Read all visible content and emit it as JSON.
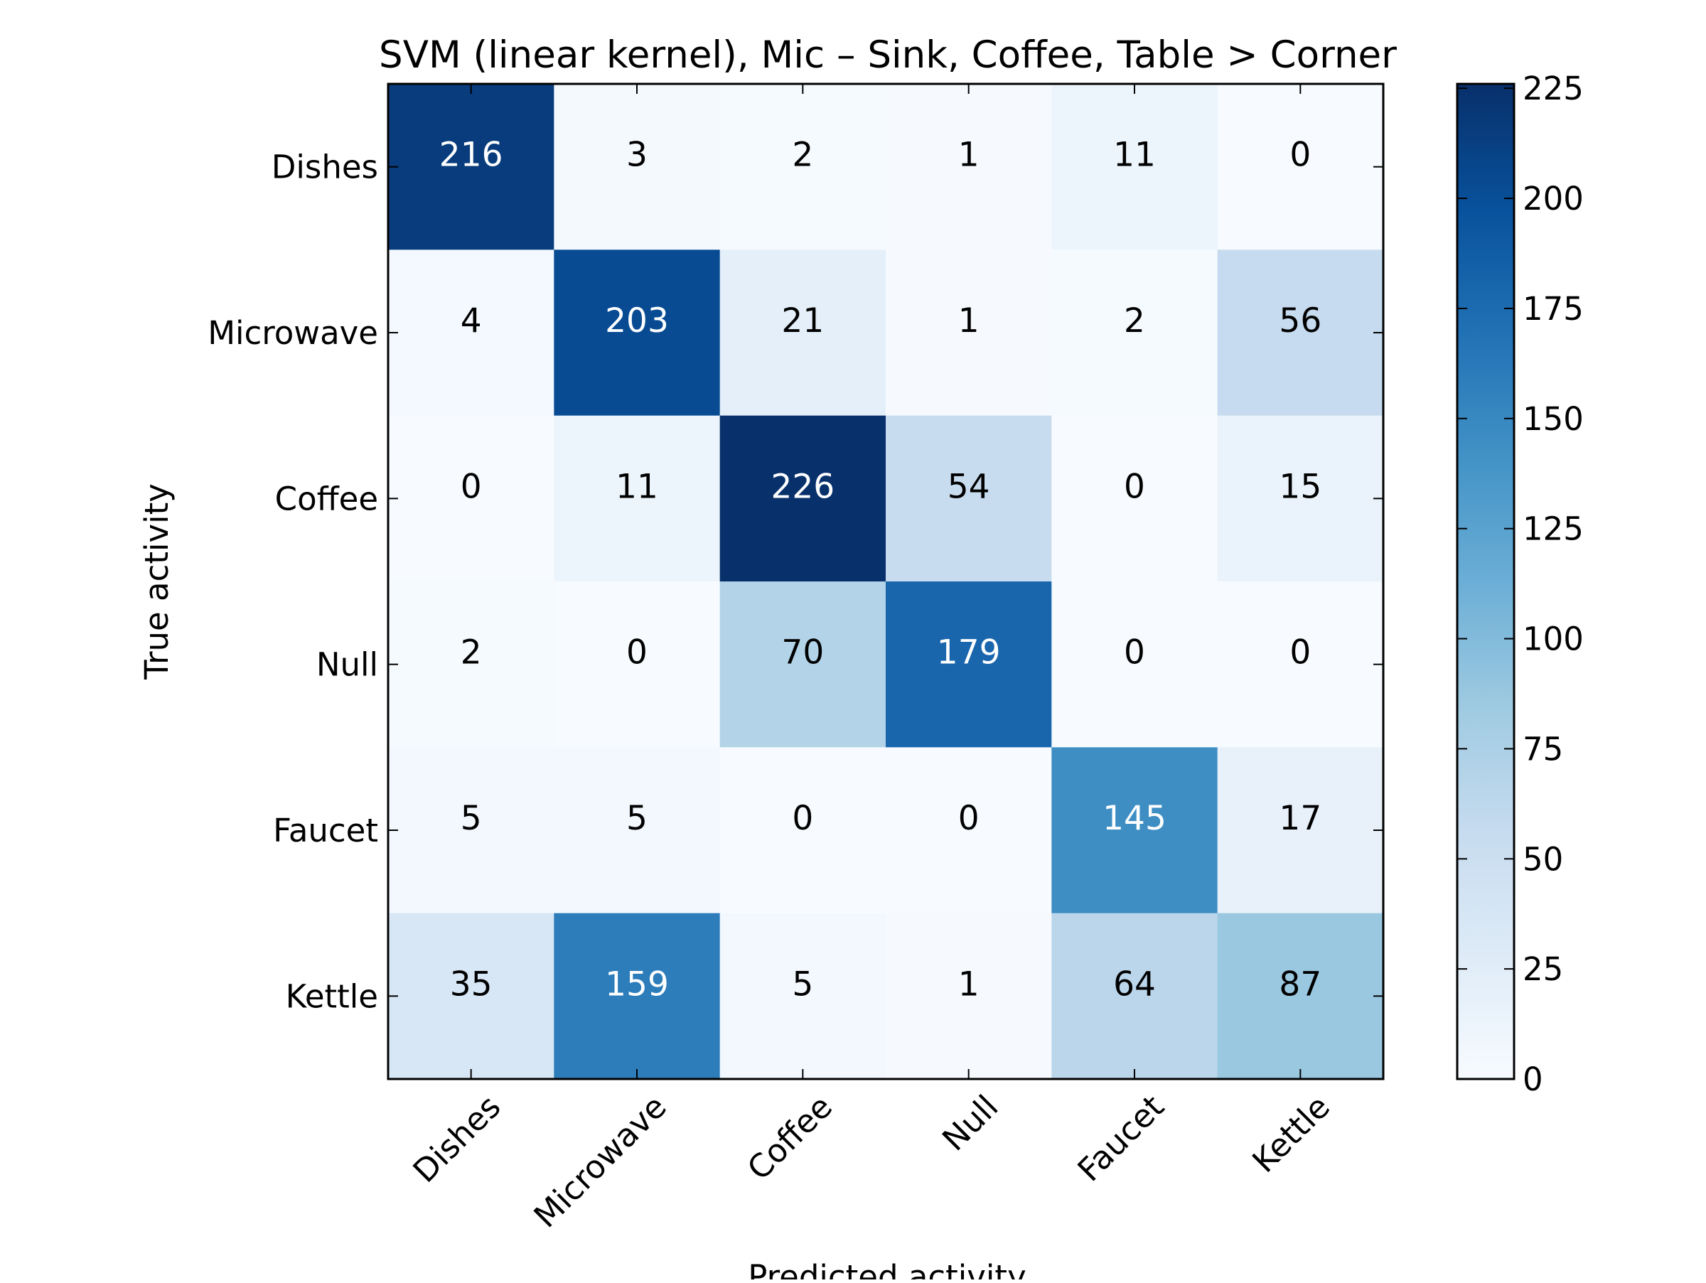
{
  "chart_data": {
    "type": "heatmap",
    "title": "SVM (linear kernel), Mic – Sink, Coffee, Table > Corner",
    "xlabel": "Predicted activity",
    "ylabel": "True activity",
    "x_categories": [
      "Dishes",
      "Microwave",
      "Coffee",
      "Null",
      "Faucet",
      "Kettle"
    ],
    "y_categories": [
      "Dishes",
      "Microwave",
      "Coffee",
      "Null",
      "Faucet",
      "Kettle"
    ],
    "values": [
      [
        216,
        3,
        2,
        1,
        11,
        0
      ],
      [
        4,
        203,
        21,
        1,
        2,
        56
      ],
      [
        0,
        11,
        226,
        54,
        0,
        15
      ],
      [
        2,
        0,
        70,
        179,
        0,
        0
      ],
      [
        5,
        5,
        0,
        0,
        145,
        17
      ],
      [
        35,
        159,
        5,
        1,
        64,
        87
      ]
    ],
    "colorbar": {
      "range": [
        0,
        226
      ],
      "ticks": [
        0,
        25,
        50,
        75,
        100,
        125,
        150,
        175,
        200,
        225
      ],
      "colormap": "Blues"
    },
    "grid": false
  }
}
